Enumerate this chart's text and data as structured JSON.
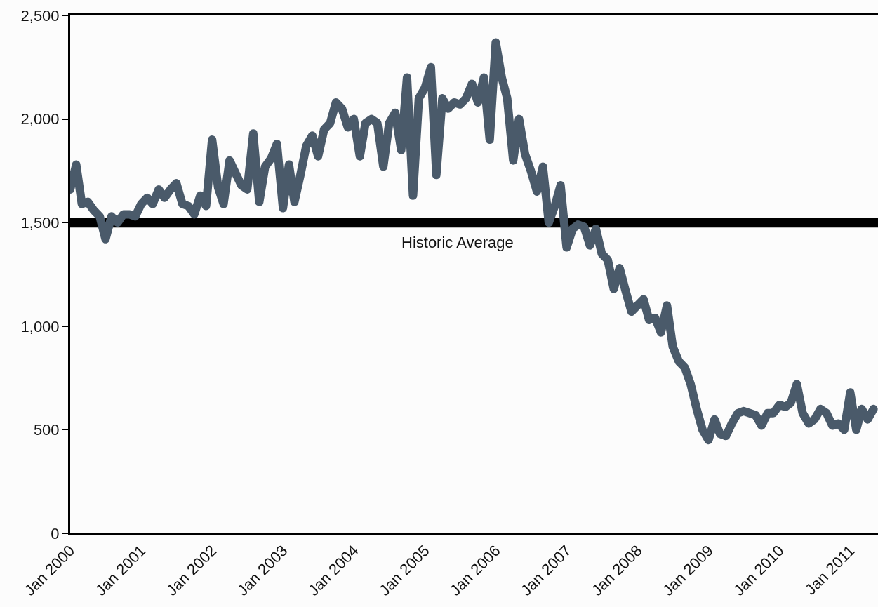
{
  "chart_data": {
    "type": "line",
    "x": [
      "2000-01",
      "2000-02",
      "2000-03",
      "2000-04",
      "2000-05",
      "2000-06",
      "2000-07",
      "2000-08",
      "2000-09",
      "2000-10",
      "2000-11",
      "2000-12",
      "2001-01",
      "2001-02",
      "2001-03",
      "2001-04",
      "2001-05",
      "2001-06",
      "2001-07",
      "2001-08",
      "2001-09",
      "2001-10",
      "2001-11",
      "2001-12",
      "2002-01",
      "2002-02",
      "2002-03",
      "2002-04",
      "2002-05",
      "2002-06",
      "2002-07",
      "2002-08",
      "2002-09",
      "2002-10",
      "2002-11",
      "2002-12",
      "2003-01",
      "2003-02",
      "2003-03",
      "2003-04",
      "2003-05",
      "2003-06",
      "2003-07",
      "2003-08",
      "2003-09",
      "2003-10",
      "2003-11",
      "2003-12",
      "2004-01",
      "2004-02",
      "2004-03",
      "2004-04",
      "2004-05",
      "2004-06",
      "2004-07",
      "2004-08",
      "2004-09",
      "2004-10",
      "2004-11",
      "2004-12",
      "2005-01",
      "2005-02",
      "2005-03",
      "2005-04",
      "2005-05",
      "2005-06",
      "2005-07",
      "2005-08",
      "2005-09",
      "2005-10",
      "2005-11",
      "2005-12",
      "2006-01",
      "2006-02",
      "2006-03",
      "2006-04",
      "2006-05",
      "2006-06",
      "2006-07",
      "2006-08",
      "2006-09",
      "2006-10",
      "2006-11",
      "2006-12",
      "2007-01",
      "2007-02",
      "2007-03",
      "2007-04",
      "2007-05",
      "2007-06",
      "2007-07",
      "2007-08",
      "2007-09",
      "2007-10",
      "2007-11",
      "2007-12",
      "2008-01",
      "2008-02",
      "2008-03",
      "2008-04",
      "2008-05",
      "2008-06",
      "2008-07",
      "2008-08",
      "2008-09",
      "2008-10",
      "2008-11",
      "2008-12",
      "2009-01",
      "2009-02",
      "2009-03",
      "2009-04",
      "2009-05",
      "2009-06",
      "2009-07",
      "2009-08",
      "2009-09",
      "2009-10",
      "2009-11",
      "2009-12",
      "2010-01",
      "2010-02",
      "2010-03",
      "2010-04",
      "2010-05",
      "2010-06",
      "2010-07",
      "2010-08",
      "2010-09",
      "2010-10",
      "2010-11",
      "2010-12",
      "2011-01",
      "2011-02",
      "2011-03",
      "2011-04",
      "2011-05"
    ],
    "series": [
      {
        "color": "#4a5a6a",
        "values": [
          1660,
          1780,
          1590,
          1600,
          1560,
          1530,
          1420,
          1530,
          1500,
          1540,
          1540,
          1530,
          1590,
          1620,
          1590,
          1660,
          1620,
          1660,
          1690,
          1590,
          1580,
          1540,
          1630,
          1580,
          1900,
          1670,
          1590,
          1800,
          1740,
          1680,
          1660,
          1930,
          1600,
          1770,
          1810,
          1880,
          1570,
          1780,
          1600,
          1730,
          1870,
          1920,
          1820,
          1950,
          1980,
          2080,
          2050,
          1960,
          2000,
          1820,
          1980,
          2000,
          1980,
          1770,
          1980,
          2030,
          1850,
          2200,
          1630,
          2100,
          2150,
          2250,
          1730,
          2100,
          2050,
          2080,
          2070,
          2100,
          2170,
          2080,
          2200,
          1900,
          2370,
          2200,
          2100,
          1800,
          2000,
          1830,
          1750,
          1650,
          1770,
          1500,
          1580,
          1680,
          1380,
          1470,
          1490,
          1480,
          1390,
          1470,
          1350,
          1320,
          1180,
          1280,
          1170,
          1070,
          1100,
          1130,
          1030,
          1040,
          970,
          1100,
          900,
          830,
          800,
          720,
          600,
          500,
          450,
          550,
          480,
          470,
          530,
          580,
          590,
          580,
          570,
          520,
          580,
          580,
          620,
          610,
          630,
          720,
          580,
          530,
          550,
          600,
          580,
          520,
          530,
          500,
          680,
          500,
          600,
          550,
          600
        ]
      }
    ],
    "xlim": [
      "2000-01-01",
      "2011-05-24"
    ],
    "xticks": [
      {
        "value": "2000-01",
        "label": "Jan 2000"
      },
      {
        "value": "2001-01",
        "label": "Jan 2001"
      },
      {
        "value": "2002-01",
        "label": "Jan 2002"
      },
      {
        "value": "2003-01",
        "label": "Jan 2003"
      },
      {
        "value": "2004-01",
        "label": "Jan 2004"
      },
      {
        "value": "2005-01",
        "label": "Jan 2005"
      },
      {
        "value": "2006-01",
        "label": "Jan 2006"
      },
      {
        "value": "2007-01",
        "label": "Jan 2007"
      },
      {
        "value": "2008-01",
        "label": "Jan 2008"
      },
      {
        "value": "2009-01",
        "label": "Jan 2009"
      },
      {
        "value": "2010-01",
        "label": "Jan 2010"
      },
      {
        "value": "2011-01",
        "label": "Jan 2011"
      }
    ],
    "ylim": [
      0,
      2500
    ],
    "yticks": [
      0,
      500,
      {
        "value": 1000,
        "label": "1,000"
      },
      {
        "value": 1500,
        "label": "1,500"
      },
      {
        "value": 2000,
        "label": "2,000"
      },
      {
        "value": 2500,
        "label": "2,500"
      }
    ],
    "ref_lines": [
      {
        "axis": "y",
        "value": 1500,
        "label": "Historic Average",
        "color": "#000000",
        "line_style": "solid"
      }
    ],
    "grid": false,
    "line_style": "solid"
  }
}
